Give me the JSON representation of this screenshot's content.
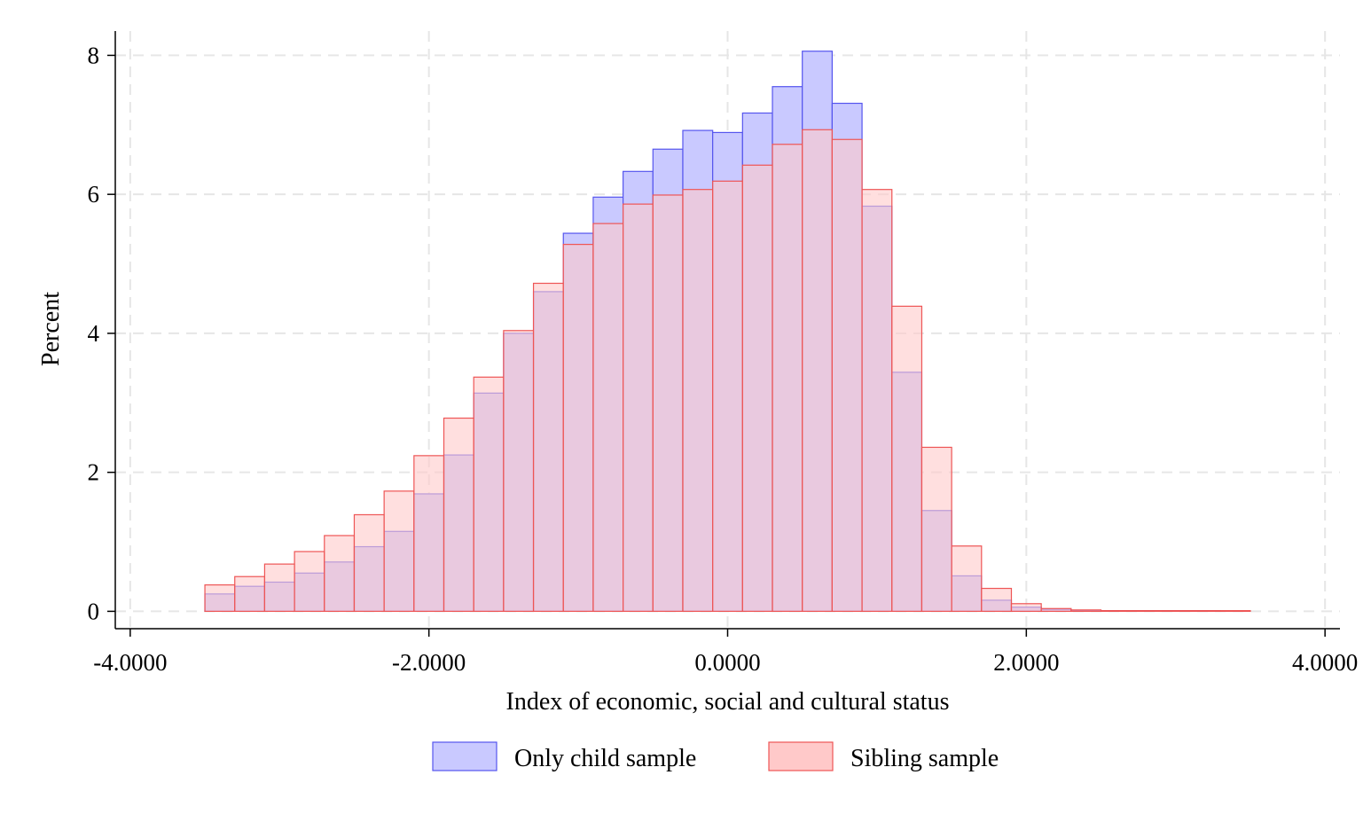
{
  "chart_data": {
    "type": "bar",
    "subtype": "overlaid-histogram",
    "title": "",
    "xlabel": "Index of economic, social and cultural status",
    "ylabel": "Percent",
    "xlim": [
      -4.1,
      4.1
    ],
    "ylim": [
      -0.25,
      8.35
    ],
    "xticks": [
      -4,
      -2,
      0,
      2,
      4
    ],
    "xtick_labels": [
      "-4.0000",
      "-2.0000",
      "0.0000",
      "2.0000",
      "4.0000"
    ],
    "yticks": [
      0,
      2,
      4,
      6,
      8
    ],
    "ytick_labels": [
      "0",
      "2",
      "4",
      "6",
      "8"
    ],
    "grid": true,
    "legend_position": "bottom",
    "bin_width": 0.2,
    "series": [
      {
        "name": "Only child sample",
        "fill": "#c9c9ff",
        "stroke": "#5555ee",
        "bins": [
          {
            "x0": -3.5,
            "value": 0.25
          },
          {
            "x0": -3.3,
            "value": 0.36
          },
          {
            "x0": -3.1,
            "value": 0.42
          },
          {
            "x0": -2.9,
            "value": 0.55
          },
          {
            "x0": -2.7,
            "value": 0.71
          },
          {
            "x0": -2.5,
            "value": 0.93
          },
          {
            "x0": -2.3,
            "value": 1.15
          },
          {
            "x0": -2.1,
            "value": 1.69
          },
          {
            "x0": -1.9,
            "value": 2.25
          },
          {
            "x0": -1.7,
            "value": 3.14
          },
          {
            "x0": -1.5,
            "value": 4.0
          },
          {
            "x0": -1.3,
            "value": 4.6
          },
          {
            "x0": -1.1,
            "value": 5.44
          },
          {
            "x0": -0.9,
            "value": 5.96
          },
          {
            "x0": -0.7,
            "value": 6.33
          },
          {
            "x0": -0.5,
            "value": 6.65
          },
          {
            "x0": -0.3,
            "value": 6.92
          },
          {
            "x0": -0.1,
            "value": 6.89
          },
          {
            "x0": 0.1,
            "value": 7.17
          },
          {
            "x0": 0.3,
            "value": 7.55
          },
          {
            "x0": 0.5,
            "value": 8.06
          },
          {
            "x0": 0.7,
            "value": 7.31
          },
          {
            "x0": 0.9,
            "value": 5.83
          },
          {
            "x0": 1.1,
            "value": 3.44
          },
          {
            "x0": 1.3,
            "value": 1.45
          },
          {
            "x0": 1.5,
            "value": 0.51
          },
          {
            "x0": 1.7,
            "value": 0.16
          },
          {
            "x0": 1.9,
            "value": 0.06
          },
          {
            "x0": 2.1,
            "value": 0.03
          },
          {
            "x0": 2.3,
            "value": 0.01
          },
          {
            "x0": 2.5,
            "value": 0.01
          },
          {
            "x0": 2.7,
            "value": 0.01
          },
          {
            "x0": 2.9,
            "value": 0.01
          },
          {
            "x0": 3.1,
            "value": 0.01
          }
        ]
      },
      {
        "name": "Sibling sample",
        "fill": "#ffc9c9",
        "stroke": "#ee5555",
        "bins": [
          {
            "x0": -3.5,
            "value": 0.38
          },
          {
            "x0": -3.3,
            "value": 0.5
          },
          {
            "x0": -3.1,
            "value": 0.68
          },
          {
            "x0": -2.9,
            "value": 0.86
          },
          {
            "x0": -2.7,
            "value": 1.09
          },
          {
            "x0": -2.5,
            "value": 1.39
          },
          {
            "x0": -2.3,
            "value": 1.73
          },
          {
            "x0": -2.1,
            "value": 2.24
          },
          {
            "x0": -1.9,
            "value": 2.78
          },
          {
            "x0": -1.7,
            "value": 3.37
          },
          {
            "x0": -1.5,
            "value": 4.04
          },
          {
            "x0": -1.3,
            "value": 4.72
          },
          {
            "x0": -1.1,
            "value": 5.28
          },
          {
            "x0": -0.9,
            "value": 5.58
          },
          {
            "x0": -0.7,
            "value": 5.86
          },
          {
            "x0": -0.5,
            "value": 5.99
          },
          {
            "x0": -0.3,
            "value": 6.07
          },
          {
            "x0": -0.1,
            "value": 6.19
          },
          {
            "x0": 0.1,
            "value": 6.42
          },
          {
            "x0": 0.3,
            "value": 6.72
          },
          {
            "x0": 0.5,
            "value": 6.93
          },
          {
            "x0": 0.7,
            "value": 6.79
          },
          {
            "x0": 0.9,
            "value": 6.07
          },
          {
            "x0": 1.1,
            "value": 4.39
          },
          {
            "x0": 1.3,
            "value": 2.36
          },
          {
            "x0": 1.5,
            "value": 0.94
          },
          {
            "x0": 1.7,
            "value": 0.33
          },
          {
            "x0": 1.9,
            "value": 0.11
          },
          {
            "x0": 2.1,
            "value": 0.04
          },
          {
            "x0": 2.3,
            "value": 0.02
          },
          {
            "x0": 2.5,
            "value": 0.01
          },
          {
            "x0": 2.7,
            "value": 0.01
          },
          {
            "x0": 2.9,
            "value": 0.01
          },
          {
            "x0": 3.1,
            "value": 0.01
          },
          {
            "x0": 3.3,
            "value": 0.01
          }
        ]
      }
    ]
  }
}
